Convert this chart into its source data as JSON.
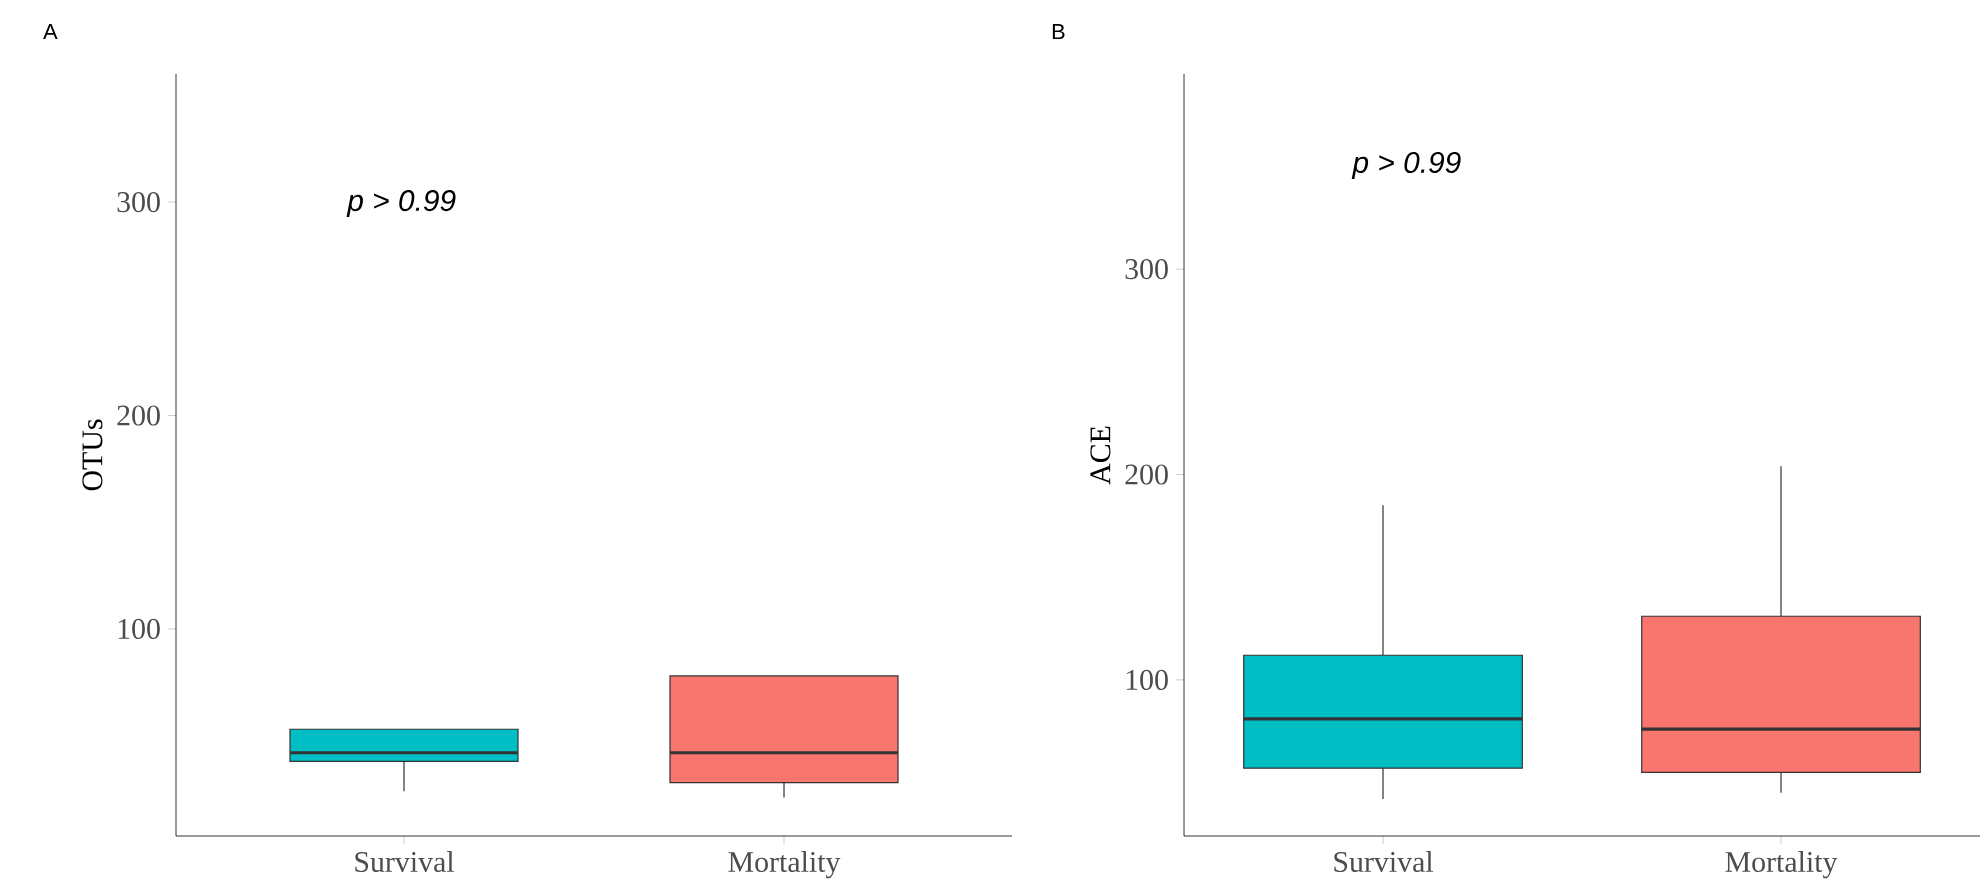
{
  "chart_data": [
    {
      "type": "box",
      "title": "A",
      "ylabel": "OTUs",
      "categories": [
        "Survival",
        "Mortality"
      ],
      "colors": [
        "#00bfc4",
        "#f8766d"
      ],
      "boxes": [
        {
          "low": 24,
          "q1": 38,
          "median": 42,
          "q3": 53,
          "high": 53
        },
        {
          "low": 21,
          "q1": 28,
          "median": 42,
          "q3": 78,
          "high": 78
        }
      ],
      "ylim": [
        3,
        360
      ],
      "yticks": [
        100,
        200,
        300
      ],
      "annotations": [
        "p > 0.99"
      ]
    },
    {
      "type": "box",
      "title": "B",
      "ylabel": "ACE",
      "categories": [
        "Survival",
        "Mortality"
      ],
      "colors": [
        "#00bfc4",
        "#f8766d"
      ],
      "boxes": [
        {
          "low": 42,
          "q1": 57,
          "median": 81,
          "q3": 112,
          "high": 185
        },
        {
          "low": 45,
          "q1": 55,
          "median": 76,
          "q3": 131,
          "high": 204
        }
      ],
      "ylim": [
        24,
        395
      ],
      "yticks": [
        100,
        200,
        300
      ],
      "annotations": [
        "p > 0.99"
      ]
    }
  ]
}
